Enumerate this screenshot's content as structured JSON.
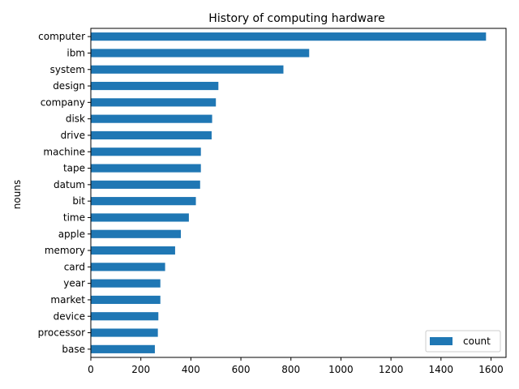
{
  "chart_data": {
    "type": "bar",
    "orientation": "horizontal",
    "title": "History of computing hardware",
    "xlabel": "",
    "ylabel": "nouns",
    "categories": [
      "computer",
      "ibm",
      "system",
      "design",
      "company",
      "disk",
      "drive",
      "machine",
      "tape",
      "datum",
      "bit",
      "time",
      "apple",
      "memory",
      "card",
      "year",
      "market",
      "device",
      "processor",
      "base"
    ],
    "series": [
      {
        "name": "count",
        "values": [
          1580,
          873,
          770,
          510,
          500,
          485,
          483,
          440,
          440,
          437,
          420,
          392,
          360,
          337,
          297,
          278,
          278,
          270,
          268,
          256
        ],
        "color": "#1f77b4"
      }
    ],
    "xlim": [
      0,
      1660
    ],
    "xticks": [
      0,
      200,
      400,
      600,
      800,
      1000,
      1200,
      1400,
      1600
    ],
    "grid": false,
    "legend": "lower-right"
  }
}
